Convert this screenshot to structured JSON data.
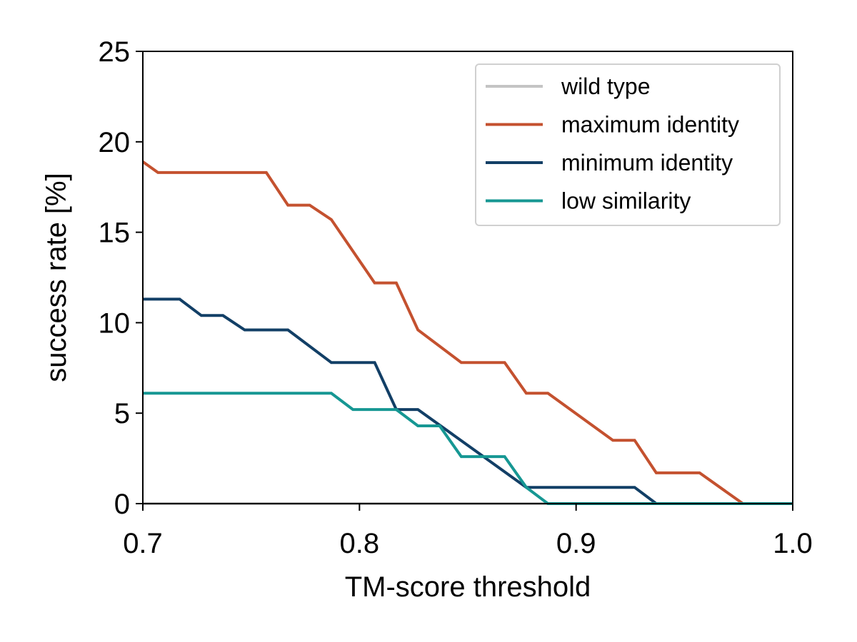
{
  "chart_data": {
    "type": "line",
    "xlabel": "TM-score threshold",
    "ylabel": "success rate [%]",
    "xlim": [
      0.7,
      1.0
    ],
    "ylim": [
      0,
      25
    ],
    "xticks": [
      "0.7",
      "0.8",
      "0.9",
      "1.0"
    ],
    "yticks": [
      "0",
      "5",
      "10",
      "15",
      "20",
      "25"
    ],
    "grid": false,
    "legend_position": "top-right",
    "series": [
      {
        "name": "wild type",
        "color": "#c4c4c4",
        "x": [
          0.7,
          1.0
        ],
        "values": [
          0,
          0
        ]
      },
      {
        "name": "maximum identity",
        "color": "#c4512f",
        "x": [
          0.7,
          0.707,
          0.757,
          0.767,
          0.777,
          0.787,
          0.807,
          0.817,
          0.827,
          0.847,
          0.867,
          0.877,
          0.887,
          0.917,
          0.927,
          0.937,
          0.957,
          0.977,
          1.0
        ],
        "values": [
          18.9,
          18.3,
          18.3,
          16.5,
          16.5,
          15.7,
          12.2,
          12.2,
          9.6,
          7.8,
          7.8,
          6.1,
          6.1,
          3.5,
          3.5,
          1.7,
          1.7,
          0,
          0
        ]
      },
      {
        "name": "minimum identity",
        "color": "#123f66",
        "x": [
          0.7,
          0.717,
          0.727,
          0.737,
          0.747,
          0.767,
          0.787,
          0.807,
          0.817,
          0.827,
          0.877,
          0.927,
          0.937,
          1.0
        ],
        "values": [
          11.3,
          11.3,
          10.4,
          10.4,
          9.6,
          9.6,
          7.8,
          7.8,
          5.2,
          5.2,
          0.9,
          0.9,
          0,
          0
        ]
      },
      {
        "name": "low similarity",
        "color": "#169793",
        "x": [
          0.7,
          0.787,
          0.797,
          0.817,
          0.827,
          0.837,
          0.847,
          0.867,
          0.877,
          0.887,
          1.0
        ],
        "values": [
          6.1,
          6.1,
          5.2,
          5.2,
          4.3,
          4.3,
          2.6,
          2.6,
          0.9,
          0,
          0
        ]
      }
    ]
  }
}
